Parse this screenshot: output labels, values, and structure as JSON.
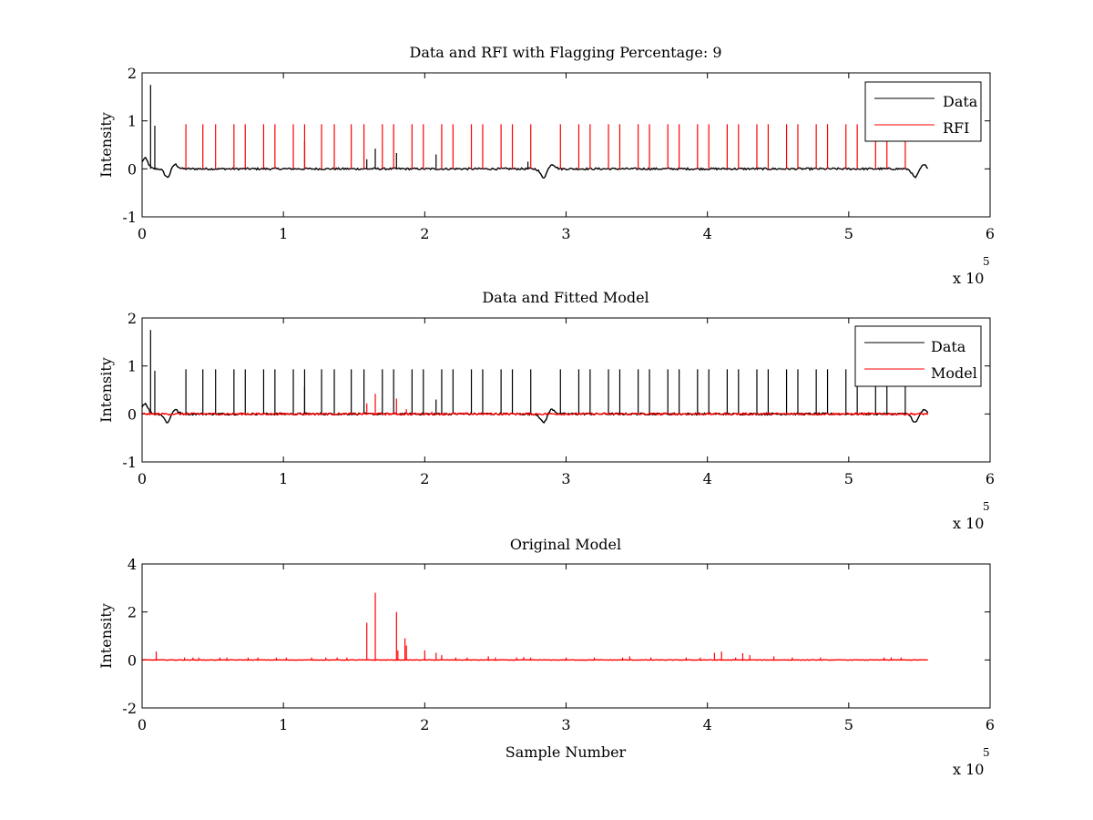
{
  "figure": {
    "background": "#ffffff"
  },
  "colors": {
    "data": "#000000",
    "rfi": "#ff0000",
    "model": "#ff0000",
    "axis": "#000000"
  },
  "chart_data": [
    {
      "type": "line",
      "title": "Data and RFI with Flagging Percentage: 9",
      "xlabel": "",
      "ylabel": "Intensity",
      "xlim": [
        0,
        6
      ],
      "ylim": [
        -1,
        2
      ],
      "xticks": [
        "0",
        "1",
        "2",
        "3",
        "4",
        "5",
        "6"
      ],
      "yticks": [
        "-1",
        "0",
        "1",
        "2"
      ],
      "x_exponent": {
        "base": "x 10",
        "power": "5"
      },
      "legend": {
        "position": "top-right",
        "entries": [
          "Data",
          "RFI"
        ]
      },
      "series": [
        {
          "name": "Data",
          "color": "#000000",
          "spikes": [
            {
              "x": 0.06,
              "y": 1.75
            },
            {
              "x": 0.09,
              "y": 0.9
            },
            {
              "x": 1.15,
              "y": 0.57
            },
            {
              "x": 1.59,
              "y": 0.2
            },
            {
              "x": 1.65,
              "y": 0.42
            },
            {
              "x": 1.8,
              "y": 0.33
            },
            {
              "x": 2.08,
              "y": 0.3
            },
            {
              "x": 2.73,
              "y": 0.15
            }
          ],
          "baseline_features": [
            {
              "x": 0.02,
              "y": 0.22
            },
            {
              "x": 0.18,
              "y": -0.18
            },
            {
              "x": 0.23,
              "y": 0.1
            },
            {
              "x": 2.84,
              "y": -0.18
            },
            {
              "x": 2.9,
              "y": 0.1
            },
            {
              "x": 5.47,
              "y": -0.18
            },
            {
              "x": 5.53,
              "y": 0.08
            }
          ],
          "x_end": 5.56
        },
        {
          "name": "RFI",
          "color": "#ff0000",
          "spikes_x": [
            0.31,
            0.43,
            0.52,
            0.65,
            0.73,
            0.86,
            0.94,
            1.07,
            1.15,
            1.27,
            1.36,
            1.48,
            1.57,
            1.7,
            1.78,
            1.91,
            1.99,
            2.12,
            2.2,
            2.33,
            2.41,
            2.54,
            2.62,
            2.75,
            2.96,
            3.09,
            3.17,
            3.3,
            3.38,
            3.51,
            3.59,
            3.72,
            3.8,
            3.93,
            4.01,
            4.14,
            4.22,
            4.35,
            4.43,
            4.56,
            4.64,
            4.77,
            4.85,
            4.98,
            5.06,
            5.19,
            5.27,
            5.4
          ],
          "spike_height": 0.93
        }
      ]
    },
    {
      "type": "line",
      "title": "Data and Fitted Model",
      "xlabel": "",
      "ylabel": "Intensity",
      "xlim": [
        0,
        6
      ],
      "ylim": [
        -1,
        2
      ],
      "xticks": [
        "0",
        "1",
        "2",
        "3",
        "4",
        "5",
        "6"
      ],
      "yticks": [
        "-1",
        "0",
        "1",
        "2"
      ],
      "x_exponent": {
        "base": "x 10",
        "power": "5"
      },
      "legend": {
        "position": "top-right",
        "entries": [
          "Data",
          "Model"
        ]
      },
      "series": [
        {
          "name": "Data",
          "color": "#000000",
          "spikes_x": [
            0.31,
            0.43,
            0.52,
            0.65,
            0.73,
            0.86,
            0.94,
            1.07,
            1.15,
            1.27,
            1.36,
            1.48,
            1.57,
            1.7,
            1.78,
            1.91,
            1.99,
            2.12,
            2.2,
            2.33,
            2.41,
            2.54,
            2.62,
            2.75,
            2.96,
            3.09,
            3.17,
            3.3,
            3.38,
            3.51,
            3.59,
            3.72,
            3.8,
            3.93,
            4.01,
            4.14,
            4.22,
            4.35,
            4.43,
            4.56,
            4.64,
            4.77,
            4.85,
            4.98,
            5.06,
            5.19,
            5.27,
            5.4
          ],
          "spike_height": 0.93,
          "extra_spikes": [
            {
              "x": 0.06,
              "y": 1.75
            },
            {
              "x": 0.09,
              "y": 0.9
            },
            {
              "x": 1.15,
              "y": 0.57
            },
            {
              "x": 2.08,
              "y": 0.3
            }
          ],
          "baseline_features": [
            {
              "x": 0.02,
              "y": 0.22
            },
            {
              "x": 0.18,
              "y": -0.18
            },
            {
              "x": 0.23,
              "y": 0.1
            },
            {
              "x": 2.84,
              "y": -0.18
            },
            {
              "x": 2.9,
              "y": 0.1
            },
            {
              "x": 5.47,
              "y": -0.18
            },
            {
              "x": 5.53,
              "y": 0.08
            }
          ],
          "x_end": 5.56
        },
        {
          "name": "Model",
          "color": "#ff0000",
          "spikes": [
            {
              "x": 1.59,
              "y": 0.22
            },
            {
              "x": 1.65,
              "y": 0.42
            },
            {
              "x": 1.8,
              "y": 0.32
            },
            {
              "x": 1.87,
              "y": 0.1
            },
            {
              "x": 2.05,
              "y": 0.05
            }
          ],
          "x_end": 5.56
        }
      ]
    },
    {
      "type": "line",
      "title": "Original Model",
      "xlabel": "Sample Number",
      "ylabel": "Intensity",
      "xlim": [
        0,
        6
      ],
      "ylim": [
        -2,
        4
      ],
      "xticks": [
        "0",
        "1",
        "2",
        "3",
        "4",
        "5",
        "6"
      ],
      "yticks": [
        "-2",
        "0",
        "2",
        "4"
      ],
      "x_exponent": {
        "base": "x 10",
        "power": "5"
      },
      "legend": null,
      "series": [
        {
          "name": "Original Model",
          "color": "#ff0000",
          "spikes": [
            {
              "x": 0.1,
              "y": 0.35
            },
            {
              "x": 1.59,
              "y": 1.55
            },
            {
              "x": 1.65,
              "y": 2.8
            },
            {
              "x": 1.8,
              "y": 2.0
            },
            {
              "x": 1.81,
              "y": 0.4
            },
            {
              "x": 1.86,
              "y": 0.9
            },
            {
              "x": 1.87,
              "y": 0.6
            },
            {
              "x": 2.0,
              "y": 0.4
            },
            {
              "x": 2.08,
              "y": 0.3
            },
            {
              "x": 2.12,
              "y": 0.2
            },
            {
              "x": 2.45,
              "y": 0.15
            },
            {
              "x": 2.7,
              "y": 0.12
            },
            {
              "x": 3.45,
              "y": 0.15
            },
            {
              "x": 4.05,
              "y": 0.3
            },
            {
              "x": 4.1,
              "y": 0.35
            },
            {
              "x": 4.25,
              "y": 0.28
            },
            {
              "x": 4.3,
              "y": 0.2
            },
            {
              "x": 4.47,
              "y": 0.15
            }
          ],
          "small_bumps_x": [
            0.3,
            0.36,
            0.4,
            0.55,
            0.6,
            0.75,
            0.82,
            0.95,
            1.02,
            1.2,
            1.3,
            1.38,
            1.45,
            2.22,
            2.3,
            2.5,
            2.65,
            2.75,
            3.0,
            3.2,
            3.4,
            3.6,
            3.85,
            3.95,
            4.2,
            4.6,
            4.8,
            5.25,
            5.3,
            5.37
          ],
          "x_end": 5.56
        }
      ]
    }
  ]
}
